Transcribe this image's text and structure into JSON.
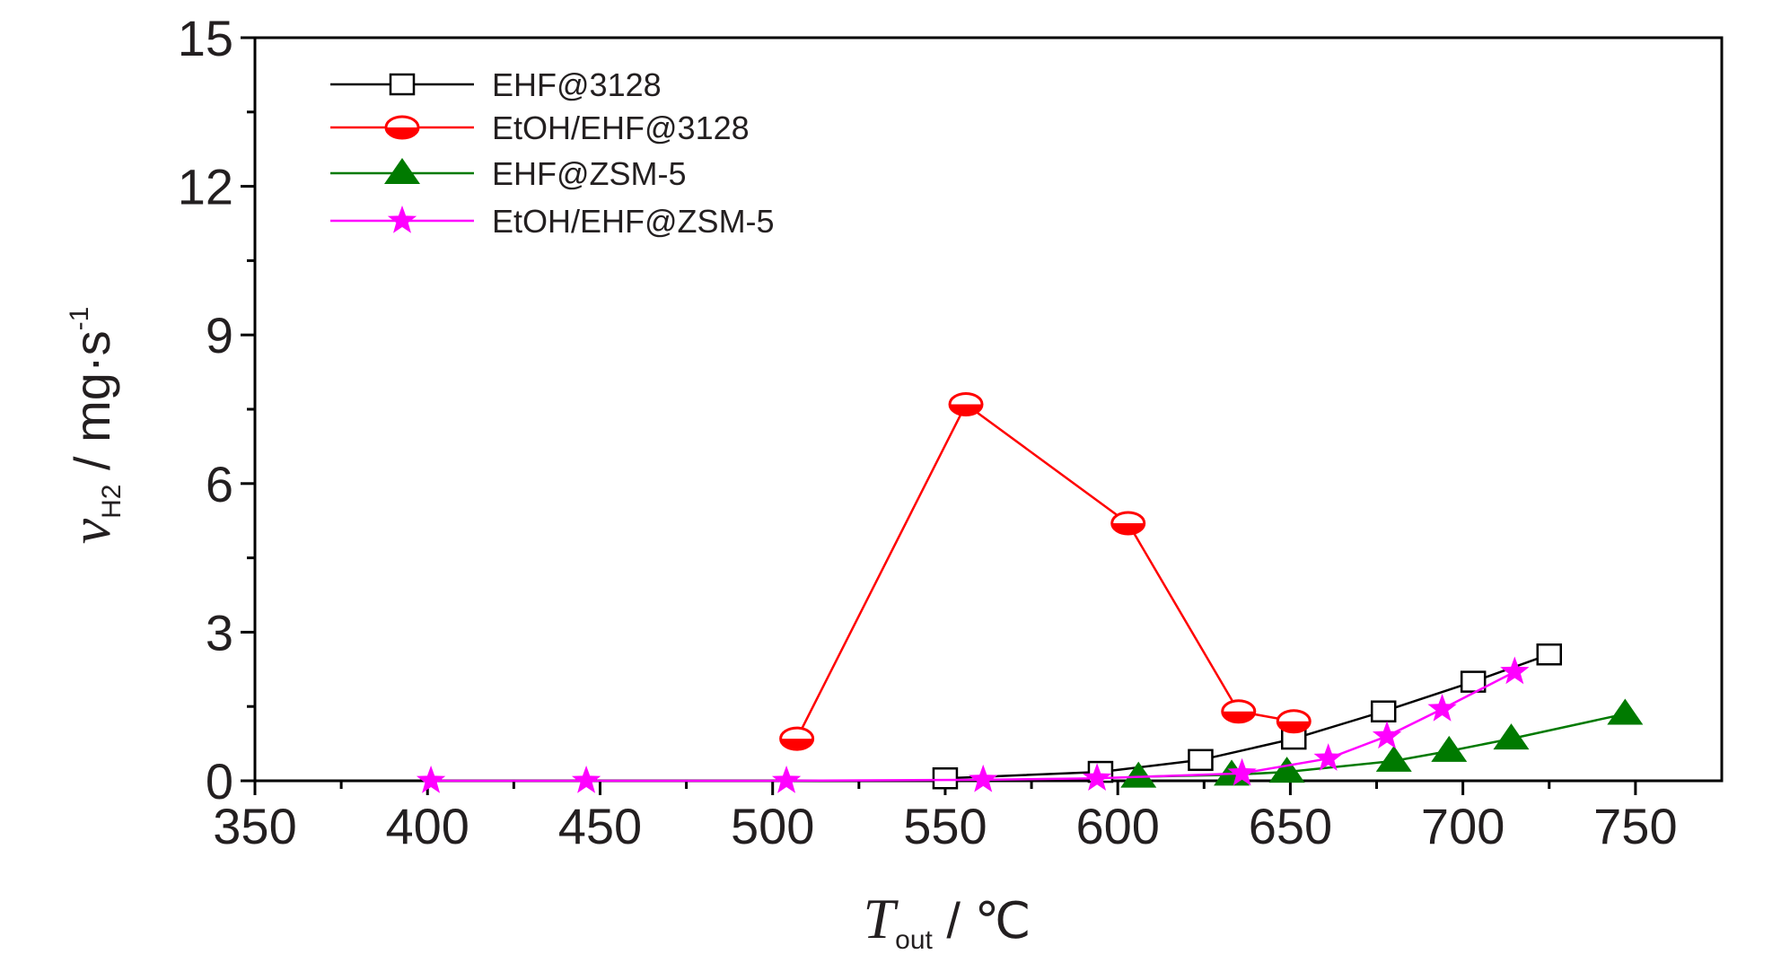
{
  "chart_data": {
    "type": "line",
    "xlim": [
      350,
      775
    ],
    "ylim": [
      0,
      15
    ],
    "x_ticks": [
      "350",
      "400",
      "450",
      "500",
      "550",
      "600",
      "650",
      "700",
      "750"
    ],
    "y_ticks": [
      "0",
      "3",
      "6",
      "9",
      "12",
      "15"
    ],
    "xlabel": {
      "symbol": "T",
      "subscript": "out",
      "unit": " / ℃"
    },
    "ylabel": {
      "symbol": "v",
      "subscript": "H2",
      "unit": " / mg·s",
      "superscript": "-1"
    },
    "legend_position": "top-left",
    "grid": false,
    "series": [
      {
        "name": "EHF@3128",
        "color": "#000000",
        "marker": "open-square",
        "x": [
          550,
          595,
          624,
          651,
          677,
          703,
          725
        ],
        "y": [
          0.05,
          0.18,
          0.42,
          0.85,
          1.4,
          2.0,
          2.55
        ]
      },
      {
        "name": "EtOH/EHF@3128",
        "color": "#ff0000",
        "marker": "half-open-circle",
        "x": [
          507,
          556,
          603,
          635,
          651
        ],
        "y": [
          0.85,
          7.6,
          5.2,
          1.4,
          1.2
        ]
      },
      {
        "name": "EHF@ZSM-5",
        "color": "#007a00",
        "marker": "filled-triangle",
        "x": [
          606,
          633,
          649,
          680,
          696,
          714,
          747
        ],
        "y": [
          0.08,
          0.12,
          0.18,
          0.4,
          0.6,
          0.85,
          1.35
        ]
      },
      {
        "name": "EtOH/EHF@ZSM-5",
        "color": "#ff00ff",
        "marker": "filled-star",
        "x": [
          401,
          446,
          504,
          561,
          594,
          636,
          661,
          678,
          694,
          715
        ],
        "y": [
          0.0,
          0.0,
          0.0,
          0.02,
          0.05,
          0.15,
          0.45,
          0.9,
          1.45,
          2.2
        ]
      }
    ]
  }
}
